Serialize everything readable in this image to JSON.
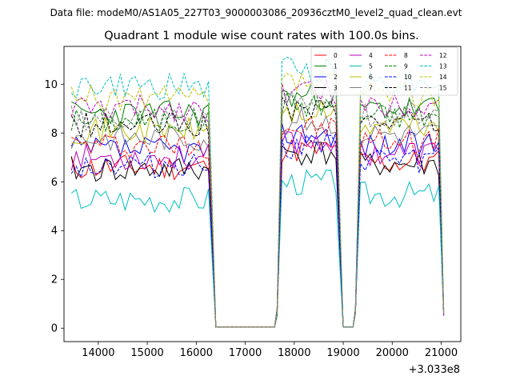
{
  "chart_data": {
    "type": "line",
    "suptitle": "Data file: modeM0/AS1A05_227T03_9000003086_20936cztM0_level2_quad_clean.evt",
    "title": "Quadrant 1 module wise count rates with 100.0s bins.",
    "xlabel": "",
    "ylabel": "",
    "x_offset_label": "+3.033e8",
    "xlim": [
      13300,
      21400
    ],
    "ylim": [
      -0.55,
      11.55
    ],
    "xticks": [
      14000,
      15000,
      16000,
      17000,
      18000,
      19000,
      20000,
      21000
    ],
    "yticks": [
      0,
      2,
      4,
      6,
      8,
      10
    ],
    "legend_position": "upper-right",
    "segments": [
      {
        "start": 13450,
        "end": 16250
      },
      {
        "start": 17650,
        "end": 18850
      },
      {
        "start": 19250,
        "end": 21050
      }
    ],
    "series": [
      {
        "name": "0",
        "color": "#ff0000",
        "dash": "solid",
        "level": 6.6,
        "seed": 11
      },
      {
        "name": "1",
        "color": "#008000",
        "dash": "solid",
        "level": 8.8,
        "seed": 23
      },
      {
        "name": "2",
        "color": "#0000ff",
        "dash": "solid",
        "level": 7.3,
        "seed": 37
      },
      {
        "name": "3",
        "color": "#000000",
        "dash": "solid",
        "level": 6.5,
        "seed": 41
      },
      {
        "name": "4",
        "color": "#bf00bf",
        "dash": "solid",
        "level": 7.0,
        "seed": 53
      },
      {
        "name": "5",
        "color": "#00bfbf",
        "dash": "solid",
        "level": 5.3,
        "seed": 67
      },
      {
        "name": "6",
        "color": "#bfbf00",
        "dash": "solid",
        "level": 8.1,
        "seed": 71
      },
      {
        "name": "7",
        "color": "#808080",
        "dash": "solid",
        "level": 7.8,
        "seed": 83
      },
      {
        "name": "8",
        "color": "#ff0000",
        "dash": "dashed",
        "level": 7.5,
        "seed": 97
      },
      {
        "name": "9",
        "color": "#008000",
        "dash": "dashed",
        "level": 8.5,
        "seed": 101
      },
      {
        "name": "10",
        "color": "#0000ff",
        "dash": "dashed",
        "level": 6.7,
        "seed": 113
      },
      {
        "name": "11",
        "color": "#000000",
        "dash": "dashed",
        "level": 8.3,
        "seed": 127
      },
      {
        "name": "12",
        "color": "#bf00bf",
        "dash": "dashed",
        "level": 9.0,
        "seed": 131
      },
      {
        "name": "13",
        "color": "#00bfbf",
        "dash": "dashed",
        "level": 9.9,
        "seed": 149
      },
      {
        "name": "14",
        "color": "#bfbf00",
        "dash": "dashed",
        "level": 9.4,
        "seed": 157
      },
      {
        "name": "15",
        "color": "#808080",
        "dash": "dashed",
        "level": 8.6,
        "seed": 163
      }
    ]
  }
}
